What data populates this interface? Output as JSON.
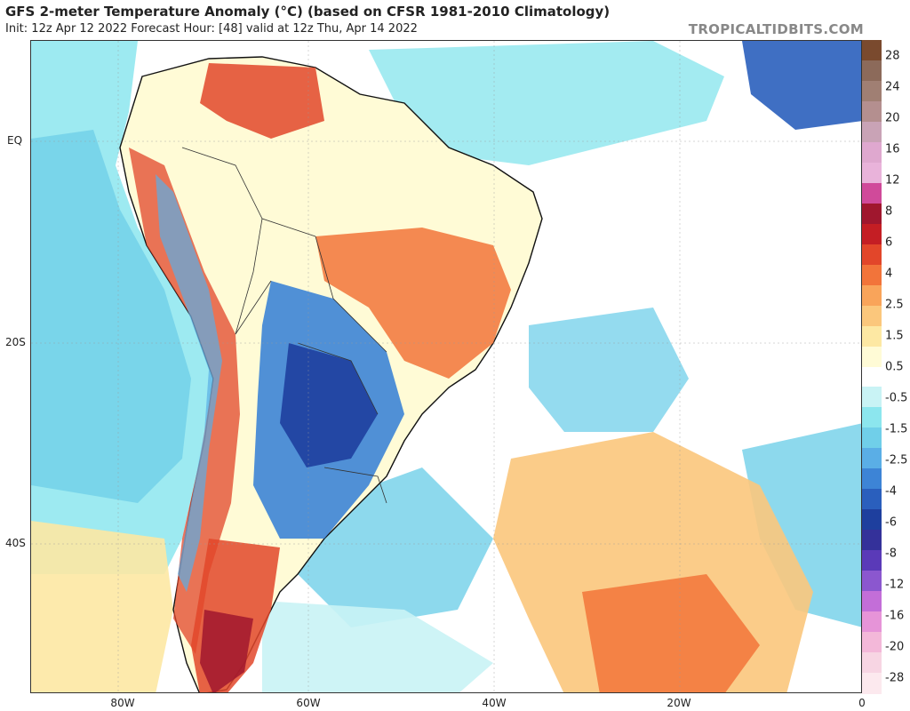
{
  "header": {
    "title": "GFS 2-meter Temperature Anomaly (°C) (based on CFSR 1981-2010 Climatology)",
    "subtitle": "Init: 12z Apr 12 2022   Forecast Hour: [48]   valid at 12z Thu, Apr 14 2022",
    "brand": "TROPICALTIDBITS.COM"
  },
  "axes": {
    "latitude_labels": [
      "EQ",
      "20S",
      "40S"
    ],
    "longitude_labels": [
      "80W",
      "60W",
      "40W",
      "20W",
      "0"
    ]
  },
  "colorbar": {
    "labels": [
      "28",
      "24",
      "20",
      "16",
      "12",
      "8",
      "6",
      "4",
      "2.5",
      "1.5",
      "0.5",
      "-0.5",
      "-1.5",
      "-2.5",
      "-4",
      "-6",
      "-8",
      "-12",
      "-16",
      "-20",
      "-28"
    ],
    "colors": [
      "#7a4a2e",
      "#8c6a5a",
      "#a07f73",
      "#b48f8f",
      "#c9a3b6",
      "#dfa8cf",
      "#e9b3da",
      "#d04a9a",
      "#a0172e",
      "#c41e24",
      "#e2462a",
      "#f2743a",
      "#f9a45a",
      "#fbc77c",
      "#fde8a3",
      "#fffbd6",
      "#ffffff",
      "#c9f3f5",
      "#8ce6ee",
      "#70cfe9",
      "#5aaee6",
      "#3d84d6",
      "#2a5fbd",
      "#1e3f9e",
      "#34319a",
      "#5a3ab8",
      "#8b57cf",
      "#c36ed8",
      "#e694d8",
      "#f3b8d9",
      "#f7d5e3",
      "#fce9ee"
    ]
  }
}
